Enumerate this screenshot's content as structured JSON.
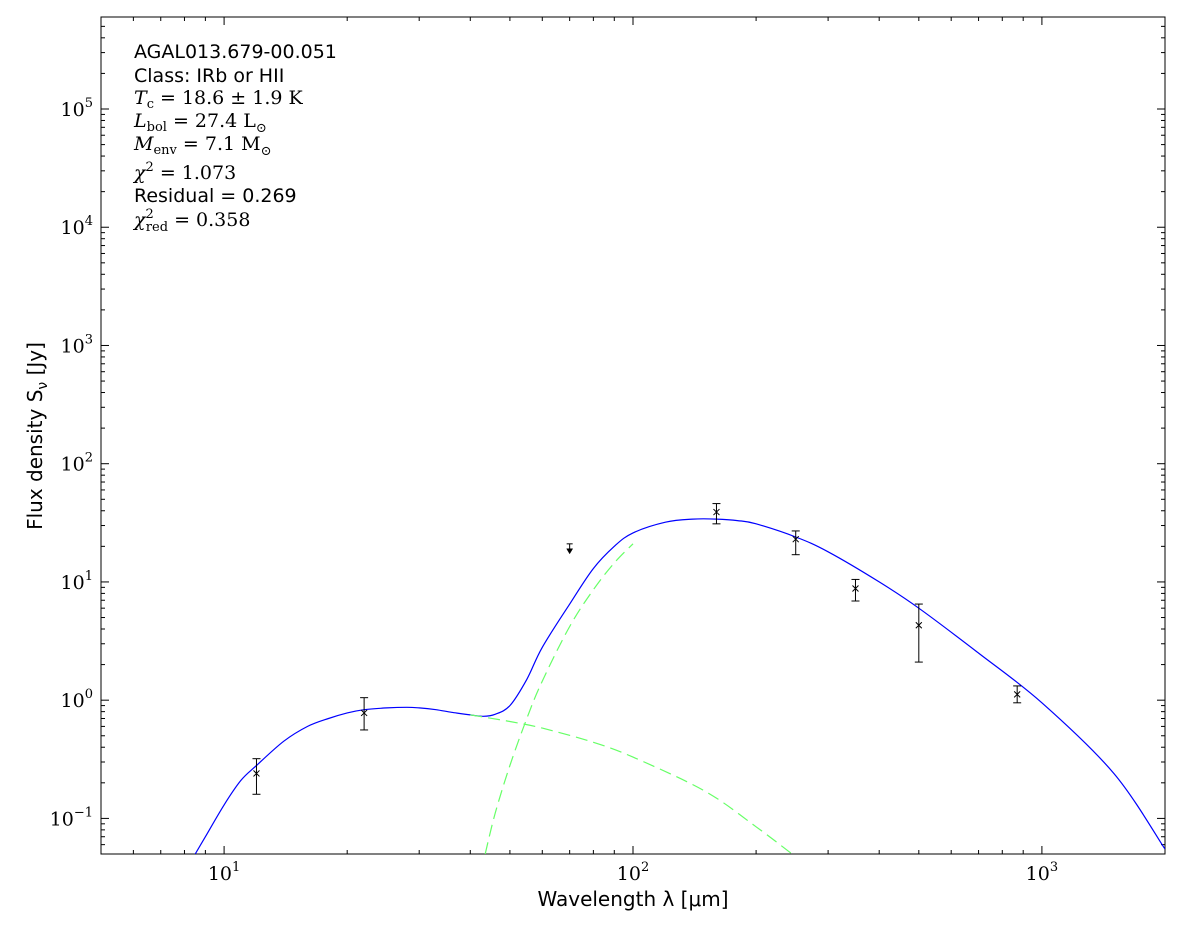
{
  "chart_data": {
    "type": "scatter",
    "xlabel": "Wavelength λ [μm]",
    "ylabel": "Flux density S",
    "ylabel_sub": "ν",
    "ylabel_unit": " [Jy]",
    "x_scale": "log",
    "y_scale": "log",
    "xlim": [
      5,
      2000
    ],
    "ylim": [
      0.05,
      600000
    ],
    "grid": false,
    "x_ticks": [
      {
        "value": 10,
        "base": "10",
        "exp": "1"
      },
      {
        "value": 100,
        "base": "10",
        "exp": "2"
      },
      {
        "value": 1000,
        "base": "10",
        "exp": "3"
      }
    ],
    "y_ticks": [
      {
        "value": 0.1,
        "base": "10",
        "exp": "−1"
      },
      {
        "value": 1,
        "base": "10",
        "exp": "0"
      },
      {
        "value": 10,
        "base": "10",
        "exp": "1"
      },
      {
        "value": 100,
        "base": "10",
        "exp": "2"
      },
      {
        "value": 1000,
        "base": "10",
        "exp": "3"
      },
      {
        "value": 10000,
        "base": "10",
        "exp": "4"
      },
      {
        "value": 100000,
        "base": "10",
        "exp": "5"
      }
    ],
    "annotations": {
      "source": "AGAL013.679-00.051",
      "class_line": "Class: IRb or HII",
      "tc": {
        "sym": "T",
        "sub": "c",
        "rest": " = 18.6 ± 1.9 K"
      },
      "lbol": {
        "sym": "L",
        "sub": "bol",
        "rest": " = 27.4 L",
        "unit_sub": "⊙"
      },
      "menv": {
        "sym": "M",
        "sub": "env",
        "rest": " = 7.1 M",
        "unit_sub": "⊙"
      },
      "chi2": {
        "sym": "χ",
        "sup": "2",
        "rest": " = 1.073"
      },
      "residual": "Residual = 0.269",
      "chi2red": {
        "sym": "χ",
        "sup": "2",
        "sub": "red",
        "rest": " = 0.358"
      }
    },
    "data_points": [
      {
        "x": 12,
        "y": 0.24,
        "err_lo": 0.16,
        "err_hi": 0.32
      },
      {
        "x": 22,
        "y": 0.78,
        "err_lo": 0.56,
        "err_hi": 1.05
      },
      {
        "x": 160,
        "y": 39,
        "err_lo": 31,
        "err_hi": 46
      },
      {
        "x": 250,
        "y": 23,
        "err_lo": 17,
        "err_hi": 27
      },
      {
        "x": 350,
        "y": 8.8,
        "err_lo": 6.9,
        "err_hi": 10.5
      },
      {
        "x": 500,
        "y": 4.3,
        "err_lo": 2.1,
        "err_hi": 6.5
      },
      {
        "x": 870,
        "y": 1.12,
        "err_lo": 0.95,
        "err_hi": 1.32
      }
    ],
    "upper_limits": [
      {
        "x": 70,
        "y": 21,
        "y_arrow": 18
      }
    ],
    "series": [
      {
        "role": "total-fit",
        "color": "#0000ff",
        "dash": "solid",
        "x": [
          8.5,
          9,
          10,
          11,
          12,
          14,
          16,
          18,
          20,
          22,
          25,
          28,
          30,
          33,
          36,
          40,
          43,
          46,
          50,
          55,
          60,
          70,
          80,
          90,
          100,
          120,
          140,
          160,
          180,
          200,
          250,
          300,
          400,
          500,
          700,
          1000,
          1500,
          2000
        ],
        "y": [
          0.05,
          0.07,
          0.13,
          0.21,
          0.28,
          0.45,
          0.6,
          0.7,
          0.78,
          0.83,
          0.86,
          0.87,
          0.86,
          0.83,
          0.79,
          0.75,
          0.73,
          0.76,
          0.9,
          1.5,
          2.8,
          6.5,
          13,
          20,
          26,
          32,
          34,
          34,
          33,
          31,
          24,
          18,
          10,
          6,
          2.5,
          0.95,
          0.24,
          0.055
        ]
      },
      {
        "role": "hot-component",
        "color": "#66ff66",
        "dash": "dashed",
        "x": [
          40,
          50,
          60,
          80,
          100,
          150,
          200,
          245
        ],
        "y": [
          0.75,
          0.66,
          0.58,
          0.44,
          0.33,
          0.17,
          0.085,
          0.05
        ]
      },
      {
        "role": "cold-component",
        "color": "#66ff66",
        "dash": "dashed",
        "x": [
          43.5,
          46,
          50,
          55,
          60,
          70,
          80,
          90,
          100
        ],
        "y": [
          0.05,
          0.11,
          0.28,
          0.7,
          1.45,
          4.2,
          8.6,
          14.5,
          21
        ]
      }
    ]
  }
}
